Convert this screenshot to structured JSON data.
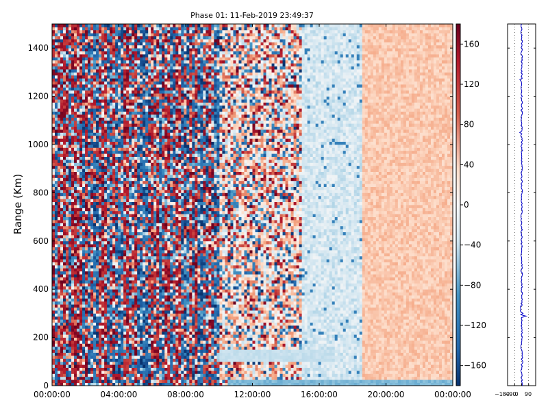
{
  "chart_data": [
    {
      "type": "heatmap",
      "title": "Phase 01: 11-Feb-2019 23:49:37",
      "xlabel": "",
      "ylabel": "Range (Km)",
      "x_ticks": [
        "00:00:00",
        "04:00:00",
        "08:00:00",
        "12:00:00",
        "16:00:00",
        "20:00:00",
        "00:00:00"
      ],
      "y_ticks": [
        0,
        200,
        400,
        600,
        800,
        1000,
        1200,
        1400
      ],
      "ylim": [
        0,
        1500
      ],
      "x_range_hours": [
        0,
        24
      ],
      "colorbar": {
        "ticks": [
          160,
          120,
          80,
          40,
          0,
          -40,
          -80,
          -120,
          -160
        ],
        "range": [
          -180,
          180
        ],
        "colormap": "RdBu_r",
        "low_color": "#08306b",
        "mid_color": "#f7f7f7",
        "high_color": "#67001f"
      },
      "regions": [
        {
          "hours": [
            0,
            10
          ],
          "character": "strong random phase noise, dark red and blue"
        },
        {
          "hours": [
            10,
            15
          ],
          "character": "mixed noise, lighter"
        },
        {
          "hours": [
            15,
            18.5
          ],
          "character": "light blue, near -20 to -40"
        },
        {
          "hours": [
            18.5,
            24
          ],
          "character": "light salmon, near +30 to +60"
        }
      ]
    },
    {
      "type": "line",
      "title": "",
      "x_ticks": [
        "−180",
        "−90",
        "0",
        "90"
      ],
      "xlim": [
        -180,
        180
      ],
      "ylim": [
        0,
        1500
      ],
      "series": [
        {
          "color": "#0000cc",
          "profile_mean": 0,
          "spike_range_km": 290,
          "spike_value": 60
        }
      ]
    }
  ]
}
